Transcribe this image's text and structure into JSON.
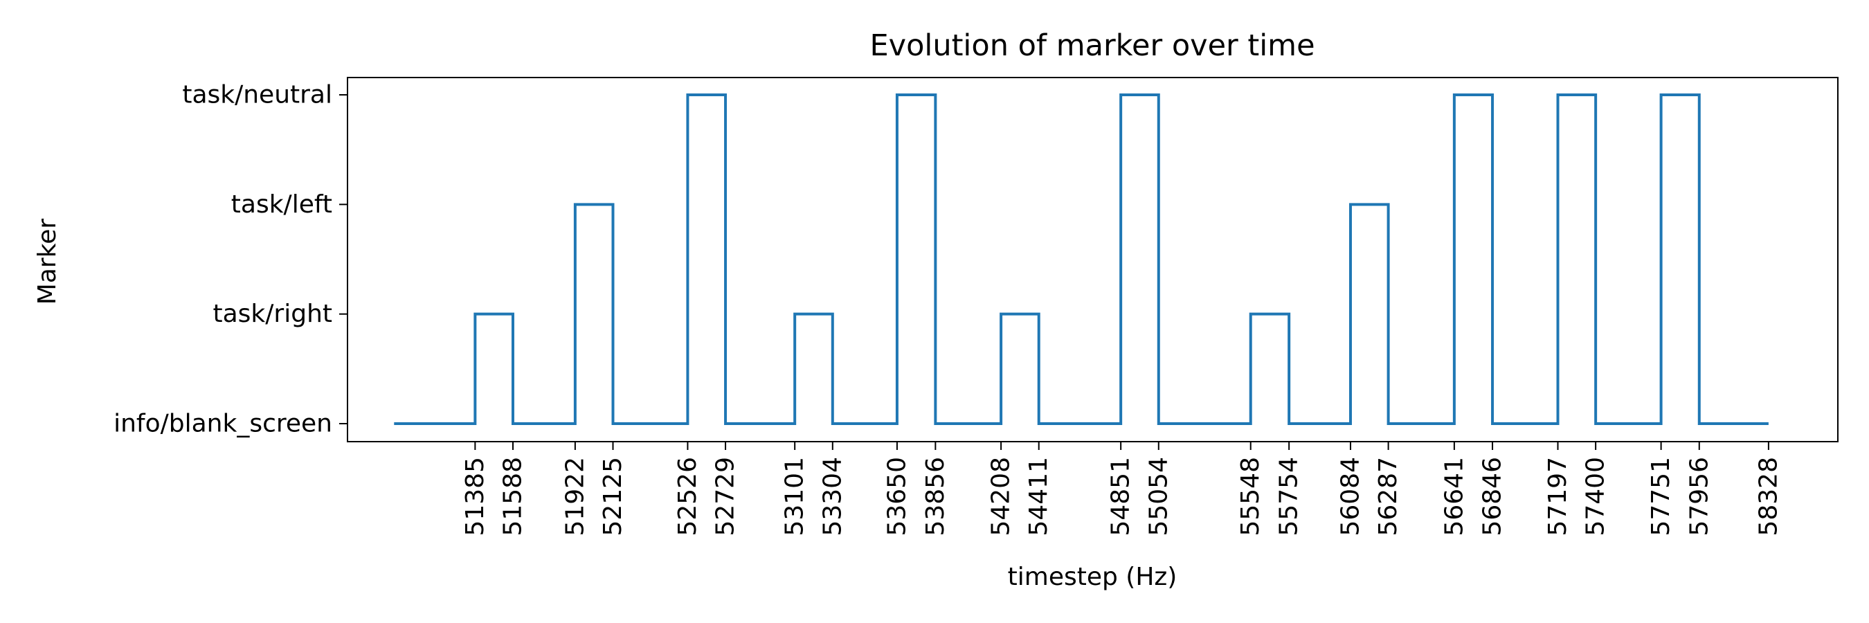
{
  "chart_data": {
    "type": "line",
    "step": true,
    "title": "Evolution of marker over time",
    "xlabel": "timestep (Hz)",
    "ylabel": "Marker",
    "categories": [
      "info/blank_screen",
      "task/right",
      "task/left",
      "task/neutral"
    ],
    "xticks": [
      51385,
      51588,
      51922,
      52125,
      52526,
      52729,
      53101,
      53304,
      53650,
      53856,
      54208,
      54411,
      54851,
      55054,
      55548,
      55754,
      56084,
      56287,
      56641,
      56846,
      57197,
      57400,
      57751,
      57956,
      58328
    ],
    "xlim": [
      50700,
      58700
    ],
    "grid": false,
    "series": [
      {
        "color": "#1f77b4",
        "x": [
          50950,
          51385,
          51385,
          51588,
          51588,
          51922,
          51922,
          52125,
          52125,
          52526,
          52526,
          52729,
          52729,
          53101,
          53101,
          53304,
          53304,
          53650,
          53650,
          53856,
          53856,
          54208,
          54208,
          54411,
          54411,
          54851,
          54851,
          55054,
          55054,
          55548,
          55548,
          55754,
          55754,
          56084,
          56084,
          56287,
          56287,
          56641,
          56641,
          56846,
          56846,
          57197,
          57197,
          57400,
          57400,
          57751,
          57751,
          57956,
          57956,
          58328
        ],
        "y": [
          "info/blank_screen",
          "info/blank_screen",
          "task/right",
          "task/right",
          "info/blank_screen",
          "info/blank_screen",
          "task/left",
          "task/left",
          "info/blank_screen",
          "info/blank_screen",
          "task/neutral",
          "task/neutral",
          "info/blank_screen",
          "info/blank_screen",
          "task/right",
          "task/right",
          "info/blank_screen",
          "info/blank_screen",
          "task/neutral",
          "task/neutral",
          "info/blank_screen",
          "info/blank_screen",
          "task/right",
          "task/right",
          "info/blank_screen",
          "info/blank_screen",
          "task/neutral",
          "task/neutral",
          "info/blank_screen",
          "info/blank_screen",
          "task/right",
          "task/right",
          "info/blank_screen",
          "info/blank_screen",
          "task/left",
          "task/left",
          "info/blank_screen",
          "info/blank_screen",
          "task/neutral",
          "task/neutral",
          "info/blank_screen",
          "info/blank_screen",
          "task/neutral",
          "task/neutral",
          "info/blank_screen",
          "info/blank_screen",
          "task/neutral",
          "task/neutral",
          "info/blank_screen",
          "info/blank_screen"
        ]
      }
    ]
  }
}
